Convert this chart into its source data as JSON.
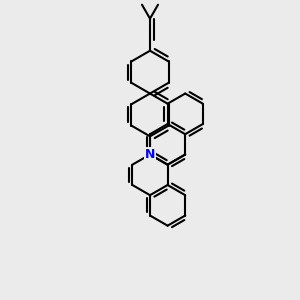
{
  "background_color": "#ebebeb",
  "bond_color": "#000000",
  "nitrogen_color": "#0000ff",
  "bond_width": 1.5,
  "figsize": [
    3.0,
    3.0
  ],
  "dpi": 100,
  "N_label": "N"
}
